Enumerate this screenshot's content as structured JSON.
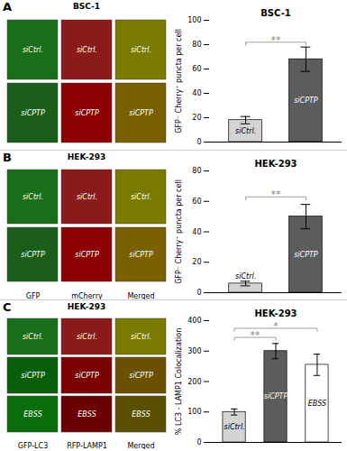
{
  "chart_data": [
    {
      "type": "image",
      "title": "BSC-1",
      "annotations": [
        "A"
      ],
      "categories": [
        null,
        null,
        null
      ],
      "series": [
        {
          "name": "siCtrl.",
          "colors": [
            "#1a6e1a",
            "#8b1a1a",
            "#7a7a00"
          ]
        },
        {
          "name": "siCPTP",
          "colors": [
            "#1a5e1a",
            "#8b0000",
            "#7a6000"
          ]
        }
      ]
    },
    {
      "type": "bar",
      "title": "BSC-1",
      "categories": [
        "siCtrl.",
        "siCPTP"
      ],
      "values": [
        18,
        68
      ],
      "errors": [
        3,
        10
      ],
      "colors": [
        "#d4d4d4",
        "#5c5c5c"
      ],
      "ylim": [
        0,
        100
      ],
      "yticks": [
        0,
        20,
        40,
        60,
        80,
        100
      ],
      "ylabel": "GFP⁻ Cherry⁺ puncta per cell",
      "annotations": [
        {
          "text": "**",
          "y": 82,
          "between": [
            "siCtrl.",
            "siCPTP"
          ],
          "color": "#888888"
        }
      ]
    },
    {
      "type": "image",
      "title": "HEK-293",
      "annotations": [
        "B"
      ],
      "categories": [
        "GFP",
        "mCherry",
        "Merged"
      ],
      "series": [
        {
          "name": "siCtrl.",
          "colors": [
            "#1a6e1a",
            "#8b1a1a",
            "#7a7a00"
          ]
        },
        {
          "name": "siCPTP",
          "colors": [
            "#1a5e1a",
            "#8b0000",
            "#7a6000"
          ]
        }
      ]
    },
    {
      "type": "bar",
      "title": "HEK-293",
      "categories": [
        "siCtrl.",
        "siCPTP"
      ],
      "values": [
        6,
        50
      ],
      "errors": [
        1.5,
        8
      ],
      "colors": [
        "#d4d4d4",
        "#5c5c5c"
      ],
      "ylim": [
        0,
        80
      ],
      "yticks": [
        0,
        20,
        40,
        60,
        80
      ],
      "ylabel": "GFP⁻ Cherry⁺ puncta per cell",
      "annotations": [
        {
          "text": "**",
          "y": 63,
          "between": [
            "siCtrl.",
            "siCPTP"
          ],
          "color": "#888888"
        }
      ]
    },
    {
      "type": "image",
      "title": "HEK-293",
      "annotations": [
        "C"
      ],
      "categories": [
        "GFP-LC3",
        "RFP-LAMP1",
        "Merged"
      ],
      "series": [
        {
          "name": "siCtrl.",
          "colors": [
            "#1a6e1a",
            "#8b1a1a",
            "#7a7a00"
          ]
        },
        {
          "name": "siCPTP",
          "colors": [
            "#0a5e0a",
            "#7b0000",
            "#6a5000"
          ]
        },
        {
          "name": "EBSS",
          "colors": [
            "#0a6e0a",
            "#6b0000",
            "#5a5000"
          ]
        }
      ]
    },
    {
      "type": "bar",
      "title": "HEK-293",
      "categories": [
        "siCtrl.",
        "siCPTP",
        "EBSS"
      ],
      "values": [
        100,
        300,
        255
      ],
      "errors": [
        10,
        25,
        35
      ],
      "colors": [
        "#d4d4d4",
        "#5c5c5c",
        "#ffffff"
      ],
      "ylim": [
        0,
        400
      ],
      "yticks": [
        0,
        100,
        200,
        300,
        400
      ],
      "ylabel": "% LC3 - LAMP1 Colocalization",
      "annotations": [
        {
          "text": "**",
          "y": 345,
          "between": [
            "siCtrl.",
            "siCPTP"
          ],
          "color": "#888888"
        },
        {
          "text": "*",
          "y": 375,
          "between": [
            "siCtrl.",
            "EBSS"
          ],
          "color": "#888888"
        }
      ]
    }
  ]
}
